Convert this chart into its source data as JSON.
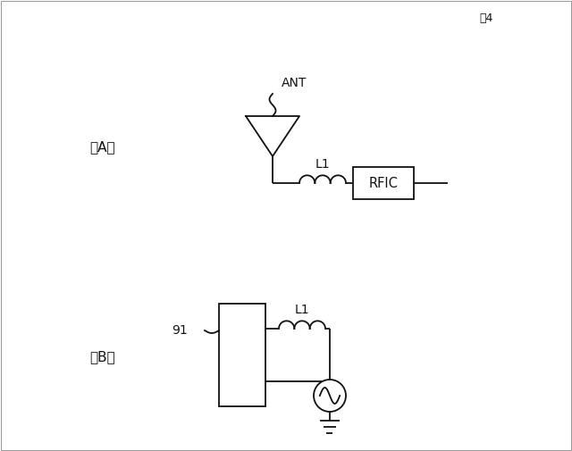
{
  "fig_label": "図4",
  "bg_color": "#ffffff",
  "line_color": "#111111",
  "label_A": "（A）",
  "label_B": "（B）",
  "label_ANT": "ANT",
  "label_L1_A": "L1",
  "label_L1_B": "L1",
  "label_RFIC": "RFIC",
  "label_91": "91",
  "fig_width": 6.4,
  "fig_height": 5.05,
  "dpi": 100,
  "border_color": "#999999"
}
